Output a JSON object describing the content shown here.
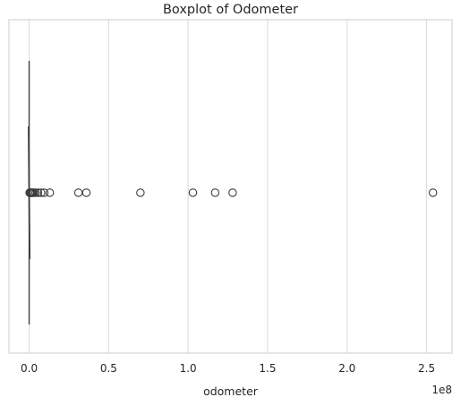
{
  "chart_data": {
    "type": "boxplot",
    "orientation": "horizontal",
    "title": "Boxplot of Odometer",
    "xlabel": "odometer",
    "ylabel": "",
    "x_offset_label": "1e8",
    "x_scale_factor": 100000000,
    "xlim": [
      -0.127,
      2.66
    ],
    "x_ticks": [
      0.0,
      0.5,
      1.0,
      1.5,
      2.0,
      2.5
    ],
    "x_tick_labels": [
      "0.0",
      "0.5",
      "1.0",
      "1.5",
      "2.0",
      "2.5"
    ],
    "grid": "vertical",
    "box": {
      "min": 0.0,
      "q1": 0.0,
      "median": 0.0,
      "q3": 0.0,
      "max": 0.0
    },
    "outliers": [
      0.003,
      0.006,
      0.009,
      0.012,
      0.015,
      0.02,
      0.025,
      0.03,
      0.04,
      0.055,
      0.075,
      0.095,
      0.13,
      0.31,
      0.36,
      0.7,
      1.03,
      1.17,
      1.28,
      2.54
    ],
    "colors": {
      "box_line": "#3f3f3f",
      "grid": "#d9d9d9",
      "outline": "#3f3f3f",
      "text": "#262626"
    }
  }
}
